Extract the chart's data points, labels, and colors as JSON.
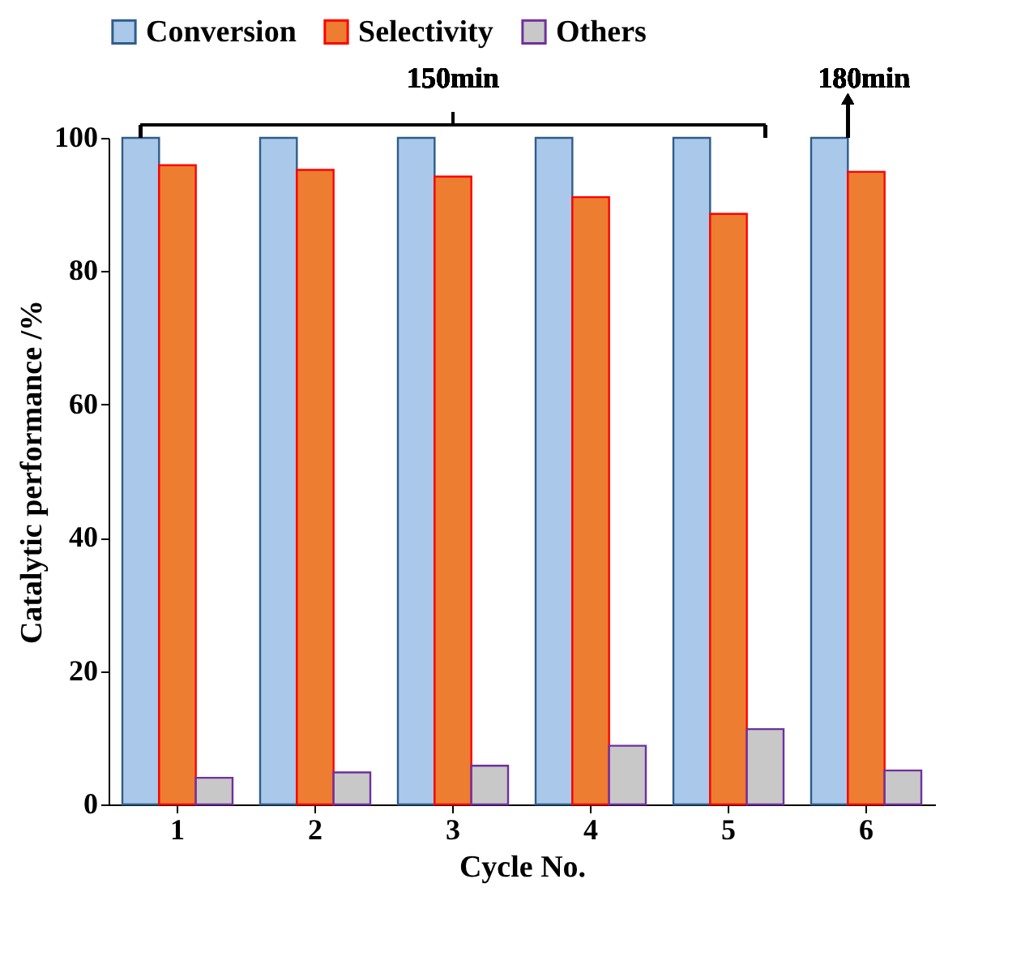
{
  "chart_data": {
    "type": "bar",
    "xlabel": "Cycle No.",
    "ylabel": "Catalytic performance /%",
    "categories": [
      "1",
      "2",
      "3",
      "4",
      "5",
      "6"
    ],
    "series": [
      {
        "name": "Conversion",
        "color": "#a9c8ea",
        "values": [
          100,
          100,
          100,
          100,
          100,
          100
        ]
      },
      {
        "name": "Selectivity",
        "color": "#ed7d31",
        "values": [
          95.9,
          95.2,
          94.2,
          91.1,
          88.6,
          94.9
        ]
      },
      {
        "name": "Others",
        "color": "#c8c8c8",
        "values": [
          4.0,
          4.8,
          5.8,
          8.8,
          11.3,
          5.1
        ]
      }
    ],
    "ylim": [
      0,
      100
    ],
    "yticks": [
      0,
      20,
      40,
      60,
      80,
      100
    ],
    "grid": false,
    "legend": "top",
    "annotations": [
      "150min",
      "180min"
    ]
  }
}
